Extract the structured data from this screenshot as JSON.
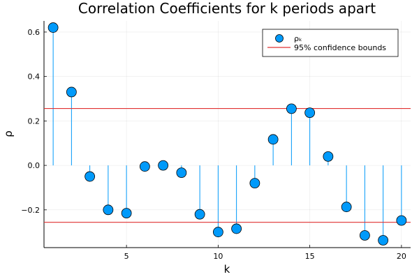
{
  "chart_data": {
    "type": "scatter",
    "title": "Correlation Coefficients for k periods apart",
    "xlabel": "k",
    "ylabel": "ρ",
    "x": [
      1,
      2,
      3,
      4,
      5,
      6,
      7,
      8,
      9,
      10,
      11,
      12,
      13,
      14,
      15,
      16,
      17,
      18,
      19,
      20
    ],
    "series": [
      {
        "name": "ρₖ",
        "style": "stem",
        "color": "#009AFA",
        "values": [
          0.62,
          0.33,
          -0.05,
          -0.2,
          -0.215,
          -0.005,
          0.0,
          -0.033,
          -0.22,
          -0.3,
          -0.285,
          -0.08,
          0.117,
          0.255,
          0.237,
          0.04,
          -0.187,
          -0.315,
          -0.337,
          -0.248
        ]
      }
    ],
    "confidence_bounds": {
      "name": "95% confidence bounds",
      "color": "#E03030",
      "values": [
        0.256,
        -0.256
      ]
    },
    "xlim": [
      0.5,
      20.5
    ],
    "ylim": [
      -0.37,
      0.65
    ],
    "xticks": [
      5,
      10,
      15,
      20
    ],
    "yticks": [
      -0.2,
      0.0,
      0.2,
      0.4,
      0.6
    ],
    "ytick_labels": [
      "−0.2",
      "0.0",
      "0.2",
      "0.4",
      "0.6"
    ],
    "grid": true,
    "legend": "top-right"
  }
}
